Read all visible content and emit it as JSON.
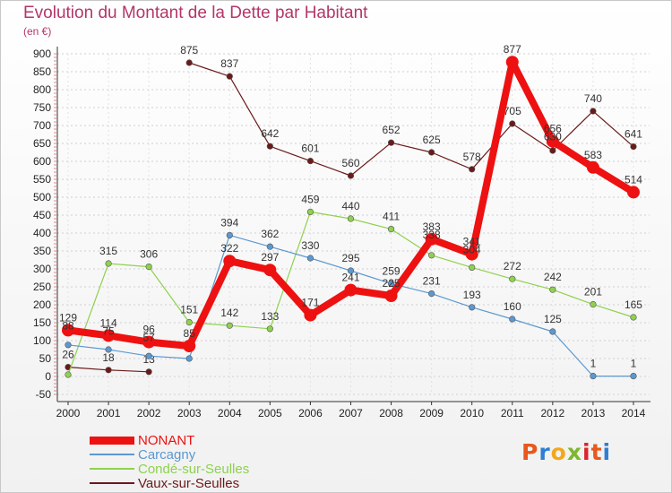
{
  "title": "Evolution du Montant de la Dette par Habitant",
  "unit": "(en €)",
  "logo": {
    "text": "Proxiti",
    "colors": [
      "#e8571c",
      "#2f7fd1",
      "#f2a81d",
      "#7cb82f",
      "#d9262d",
      "#e8571c",
      "#2f7fd1"
    ]
  },
  "chart_data": {
    "type": "line",
    "x": [
      "2000",
      "2001",
      "2002",
      "2003",
      "2004",
      "2005",
      "2006",
      "2007",
      "2008",
      "2009",
      "2010",
      "2011",
      "2012",
      "2013",
      "2014"
    ],
    "y_ticks": [
      -50,
      0,
      50,
      100,
      150,
      200,
      250,
      300,
      350,
      400,
      450,
      500,
      550,
      600,
      650,
      700,
      750,
      800,
      850,
      900
    ],
    "ylim": [
      -50,
      900
    ],
    "grid": "horizontal dashed",
    "legend_position": "bottom-left",
    "series": [
      {
        "name": "Vaux-sur-Seulles",
        "color": "#6b1a1a",
        "values": [
          26,
          18,
          13,
          875,
          837,
          642,
          601,
          560,
          652,
          625,
          578,
          705,
          630,
          740,
          641
        ],
        "labels": [
          "26",
          "18",
          "13",
          "875",
          "837",
          "642",
          "601",
          "560",
          "652",
          "625",
          "578",
          "705",
          "",
          "740",
          "641"
        ],
        "gap_after_index": 2
      },
      {
        "name": "Condé-sur-Seulles",
        "color": "#8fd14f",
        "values": [
          5,
          315,
          306,
          151,
          142,
          133,
          459,
          440,
          411,
          338,
          304,
          272,
          242,
          201,
          165
        ],
        "labels": [
          "",
          "315",
          "306",
          "151",
          "142",
          "133",
          "459",
          "440",
          "411",
          "",
          "",
          "272",
          "242",
          "201",
          "165"
        ]
      },
      {
        "name": "Carcagny",
        "color": "#5c98d1",
        "values": [
          88,
          75,
          57,
          50,
          394,
          362,
          330,
          295,
          259,
          231,
          193,
          160,
          125,
          1,
          1
        ],
        "labels": [
          "",
          "",
          "",
          "",
          "394",
          "362",
          "330",
          "295",
          "259",
          "231",
          "193",
          "160",
          "125",
          "1",
          "1"
        ]
      },
      {
        "name": "NONANT",
        "color": "#ee1111",
        "values": [
          129,
          114,
          96,
          85,
          322,
          297,
          171,
          241,
          225,
          383,
          341,
          877,
          656,
          583,
          514
        ],
        "labels": [
          "129",
          "114",
          "96",
          "85",
          "322",
          "297",
          "171",
          "241",
          "225",
          "383",
          "341",
          "877",
          "656",
          "583",
          "514"
        ]
      }
    ],
    "overlap_labels": [
      {
        "year_index": 0,
        "text": "88"
      },
      {
        "year_index": 1,
        "text": "75"
      },
      {
        "year_index": 2,
        "text": "57"
      },
      {
        "year_index": 9,
        "text": "338"
      },
      {
        "year_index": 10,
        "text": "304"
      },
      {
        "year_index": 12,
        "text": "630"
      }
    ]
  },
  "legend": [
    {
      "label": "NONANT",
      "color": "#ee1111"
    },
    {
      "label": "Carcagny",
      "color": "#5c98d1"
    },
    {
      "label": "Condé-sur-Seulles",
      "color": "#8fd14f"
    },
    {
      "label": "Vaux-sur-Seulles",
      "color": "#6b1a1a"
    }
  ]
}
